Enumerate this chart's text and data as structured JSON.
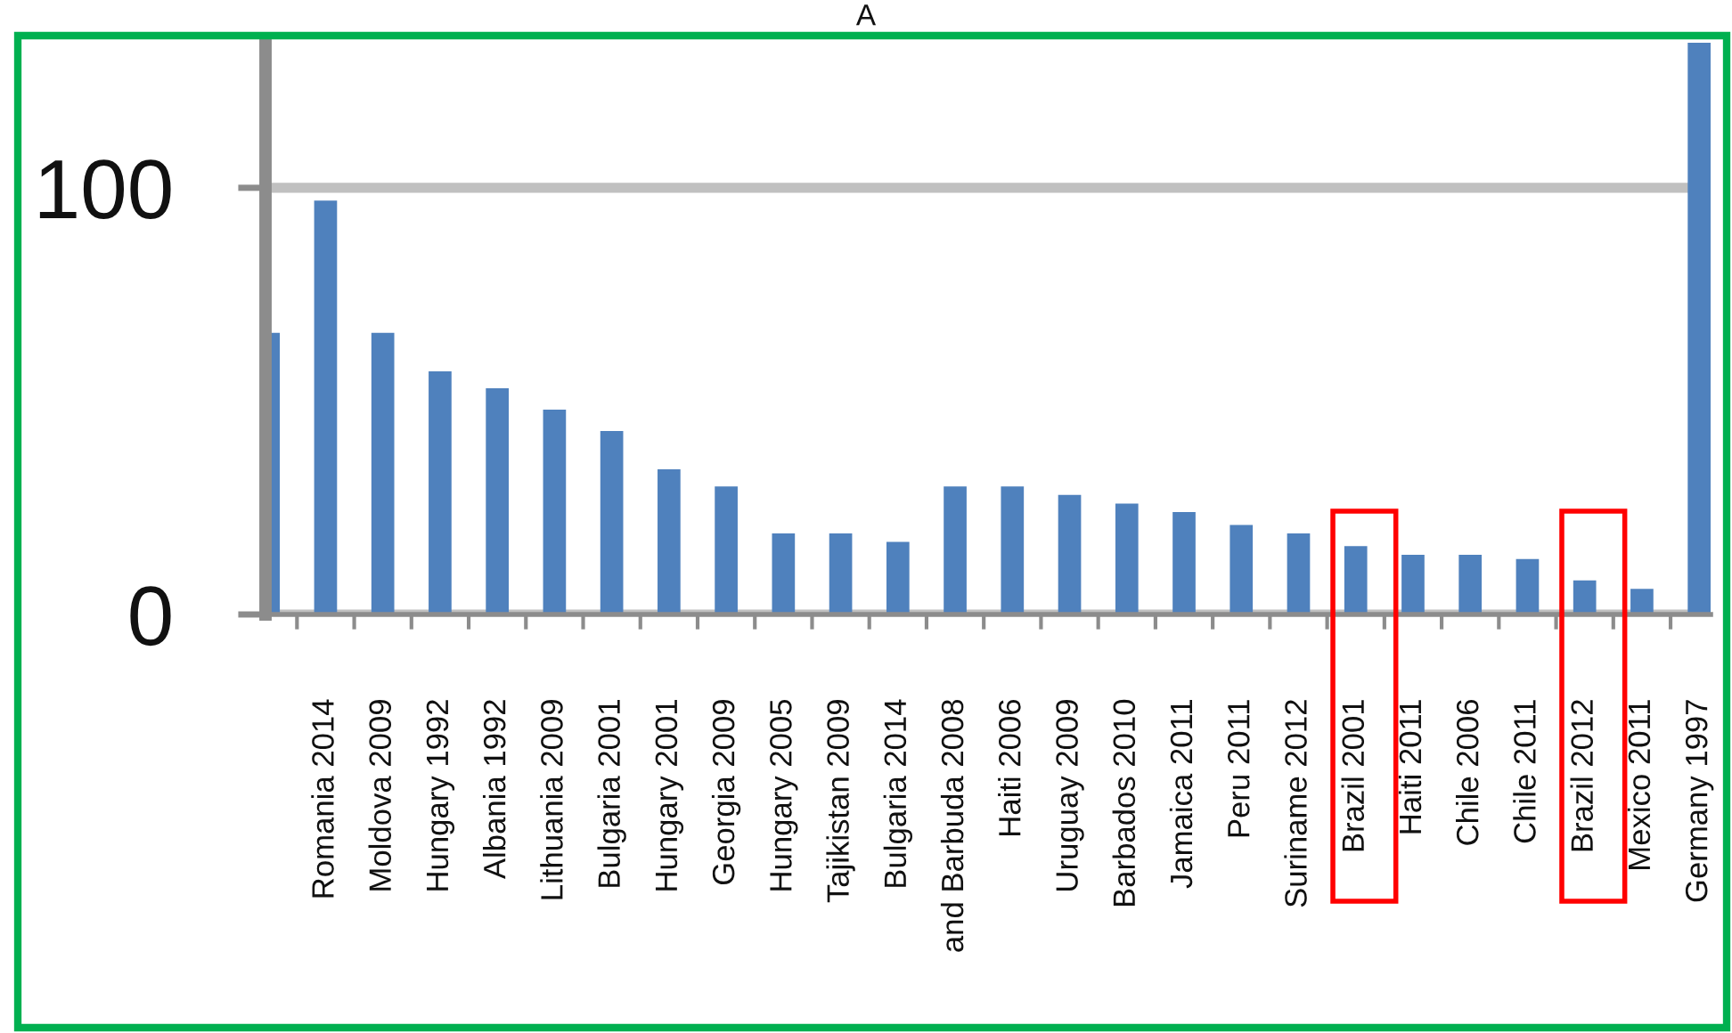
{
  "chart_data": {
    "type": "bar",
    "title": "A",
    "categories": [
      null,
      "Romania 2014",
      "Moldova 2009",
      "Hungary 1992",
      "Albania 1992",
      "Lithuania 2009",
      "Bulgaria 2001",
      "Hungary 2001",
      "Georgia 2009",
      "Hungary 2005",
      "Tajikistan 2009",
      "Bulgaria 2014",
      "and Barbuda 2008",
      "Haiti 2006",
      "Uruguay 2009",
      "Barbados 2010",
      "Jamaica 2011",
      "Peru 2011",
      "Suriname 2012",
      "Brazil 2001",
      "Haiti 2011",
      "Chile 2006",
      "Chile 2011",
      "Brazil 2012",
      "Mexico 2011",
      "Germany 1997"
    ],
    "values": [
      66,
      97,
      66,
      57,
      53,
      48,
      43,
      34,
      30,
      19,
      19,
      17,
      30,
      30,
      28,
      26,
      24,
      21,
      19,
      16,
      14,
      14,
      13,
      8,
      6,
      134
    ],
    "color": "#4f81bd",
    "ylim": [
      0,
      134
    ],
    "yticks": [
      0,
      100
    ],
    "grid": "y"
  }
}
